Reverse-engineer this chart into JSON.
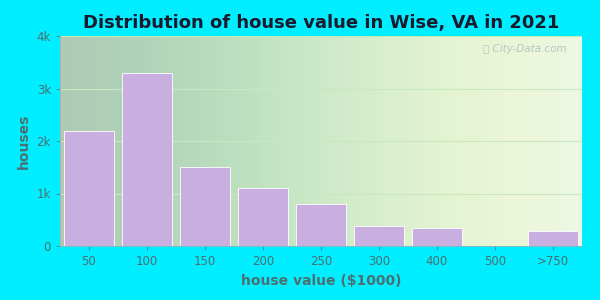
{
  "title": "Distribution of house value in Wise, VA in 2021",
  "xlabel": "house value ($1000)",
  "ylabel": "houses",
  "categories": [
    "50",
    "100",
    "150",
    "200",
    "250",
    "300",
    "400",
    "500",
    ">750"
  ],
  "values": [
    2200,
    3300,
    1500,
    1100,
    800,
    380,
    350,
    0,
    280
  ],
  "bar_color": "#c9aee0",
  "bar_edge_color": "#ffffff",
  "background_outer": "#00eeff",
  "background_inner": "#e8f5e2",
  "ylim": [
    0,
    4000
  ],
  "yticks": [
    0,
    1000,
    2000,
    3000,
    4000
  ],
  "ytick_labels": [
    "0",
    "1k",
    "2k",
    "3k",
    "4k"
  ],
  "title_fontsize": 13,
  "axis_label_fontsize": 10,
  "tick_fontsize": 8.5,
  "watermark": "City-Data.com",
  "title_color": "#1a1a2e",
  "label_color": "#4a7070",
  "tick_color": "#4a7070",
  "grid_color": "#c8e8c0"
}
